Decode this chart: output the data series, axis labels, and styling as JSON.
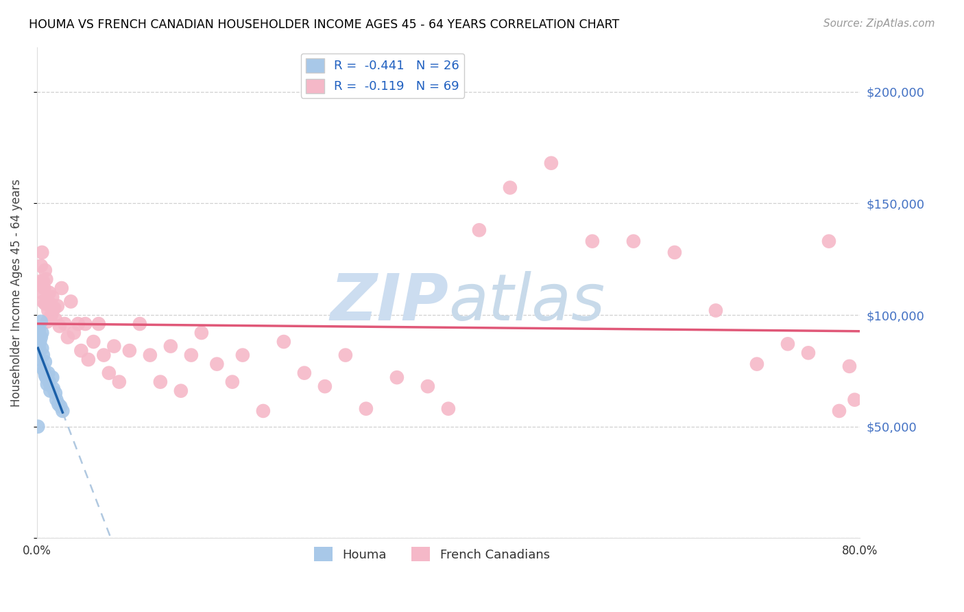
{
  "title": "HOUMA VS FRENCH CANADIAN HOUSEHOLDER INCOME AGES 45 - 64 YEARS CORRELATION CHART",
  "source": "Source: ZipAtlas.com",
  "ylabel": "Householder Income Ages 45 - 64 years",
  "xlim": [
    0.0,
    0.8
  ],
  "ylim": [
    0,
    220000
  ],
  "yticks": [
    0,
    50000,
    100000,
    150000,
    200000
  ],
  "ytick_labels": [
    "",
    "$50,000",
    "$100,000",
    "$150,000",
    "$200,000"
  ],
  "xtick_positions": [
    0.0,
    0.1,
    0.2,
    0.3,
    0.4,
    0.5,
    0.6,
    0.7,
    0.8
  ],
  "xtick_labels": [
    "0.0%",
    "",
    "",
    "",
    "",
    "",
    "",
    "",
    "80.0%"
  ],
  "houma_R": -0.441,
  "houma_N": 26,
  "fc_R": -0.119,
  "fc_N": 69,
  "houma_color": "#a8c8e8",
  "houma_line_color": "#1a5fa8",
  "fc_color": "#f5b8c8",
  "fc_line_color": "#e05878",
  "dashed_line_color": "#b0c8e0",
  "houma_x": [
    0.001,
    0.002,
    0.002,
    0.003,
    0.003,
    0.004,
    0.004,
    0.005,
    0.005,
    0.006,
    0.006,
    0.007,
    0.008,
    0.008,
    0.009,
    0.01,
    0.011,
    0.012,
    0.013,
    0.015,
    0.016,
    0.018,
    0.019,
    0.021,
    0.023,
    0.025
  ],
  "houma_y": [
    50000,
    93000,
    85000,
    88000,
    80000,
    97000,
    90000,
    85000,
    92000,
    82000,
    76000,
    75000,
    73000,
    79000,
    72000,
    69000,
    74000,
    70000,
    66000,
    72000,
    67000,
    65000,
    62000,
    60000,
    59000,
    57000
  ],
  "fc_x": [
    0.003,
    0.004,
    0.005,
    0.005,
    0.006,
    0.006,
    0.007,
    0.008,
    0.008,
    0.009,
    0.01,
    0.011,
    0.012,
    0.013,
    0.014,
    0.015,
    0.017,
    0.018,
    0.02,
    0.022,
    0.024,
    0.027,
    0.03,
    0.033,
    0.036,
    0.04,
    0.043,
    0.047,
    0.05,
    0.055,
    0.06,
    0.065,
    0.07,
    0.075,
    0.08,
    0.09,
    0.1,
    0.11,
    0.12,
    0.13,
    0.14,
    0.15,
    0.16,
    0.175,
    0.19,
    0.2,
    0.22,
    0.24,
    0.26,
    0.28,
    0.3,
    0.32,
    0.35,
    0.38,
    0.4,
    0.43,
    0.46,
    0.5,
    0.54,
    0.58,
    0.62,
    0.66,
    0.7,
    0.73,
    0.75,
    0.77,
    0.78,
    0.79,
    0.795
  ],
  "fc_y": [
    115000,
    122000,
    110000,
    128000,
    106000,
    115000,
    112000,
    120000,
    105000,
    116000,
    97000,
    102000,
    110000,
    105000,
    100000,
    108000,
    103000,
    98000,
    104000,
    95000,
    112000,
    96000,
    90000,
    106000,
    92000,
    96000,
    84000,
    96000,
    80000,
    88000,
    96000,
    82000,
    74000,
    86000,
    70000,
    84000,
    96000,
    82000,
    70000,
    86000,
    66000,
    82000,
    92000,
    78000,
    70000,
    82000,
    57000,
    88000,
    74000,
    68000,
    82000,
    58000,
    72000,
    68000,
    58000,
    138000,
    157000,
    168000,
    133000,
    133000,
    128000,
    102000,
    78000,
    87000,
    83000,
    133000,
    57000,
    77000,
    62000
  ]
}
